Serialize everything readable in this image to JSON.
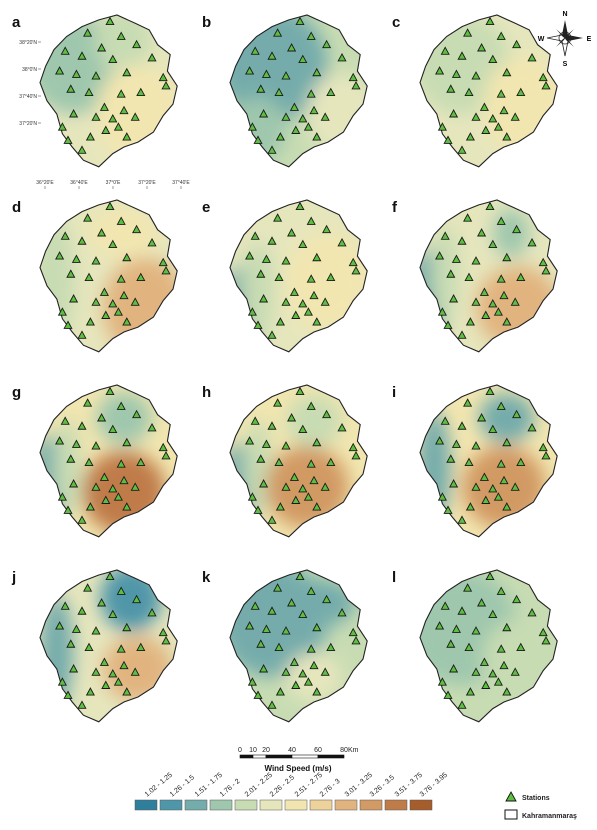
{
  "panels": [
    "a",
    "b",
    "c",
    "d",
    "e",
    "f",
    "g",
    "h",
    "i",
    "j",
    "k",
    "l"
  ],
  "coordinates": {
    "latitudes": [
      "38°20'N",
      "38°0'N",
      "37°40'N",
      "37°20'N"
    ],
    "longitudes": [
      "36°20'E",
      "36°40'E",
      "37°0'E",
      "37°20'E",
      "37°40'E"
    ]
  },
  "compass": {
    "n": "N",
    "e": "E",
    "s": "S",
    "w": "W"
  },
  "scale_bar": {
    "ticks": [
      0,
      10,
      20,
      40,
      60,
      80
    ],
    "unit": "Km"
  },
  "legend": {
    "title": "Wind Speed (m/s)",
    "classes": [
      {
        "label": "1.02 - 1.25",
        "color": "#2f7f9c"
      },
      {
        "label": "1.26 - 1.5",
        "color": "#5096a9"
      },
      {
        "label": "1.51 - 1.75",
        "color": "#74acab"
      },
      {
        "label": "1.76 - 2",
        "color": "#9fc7ad"
      },
      {
        "label": "2.01 - 2.25",
        "color": "#c8dcb3"
      },
      {
        "label": "2.26 - 2.5",
        "color": "#e6e6bd"
      },
      {
        "label": "2.51 - 2.75",
        "color": "#f2e6b0"
      },
      {
        "label": "2.76 - 3",
        "color": "#edd39b"
      },
      {
        "label": "3.01 - 3.25",
        "color": "#e1b47f"
      },
      {
        "label": "3.26 - 3.5",
        "color": "#d29a64"
      },
      {
        "label": "3.51 - 3.75",
        "color": "#bf7c48"
      },
      {
        "label": "3.76 - 3.95",
        "color": "#a65d2c"
      }
    ],
    "stations": "Stations",
    "boundary": "Kahramanmaraş"
  }
}
